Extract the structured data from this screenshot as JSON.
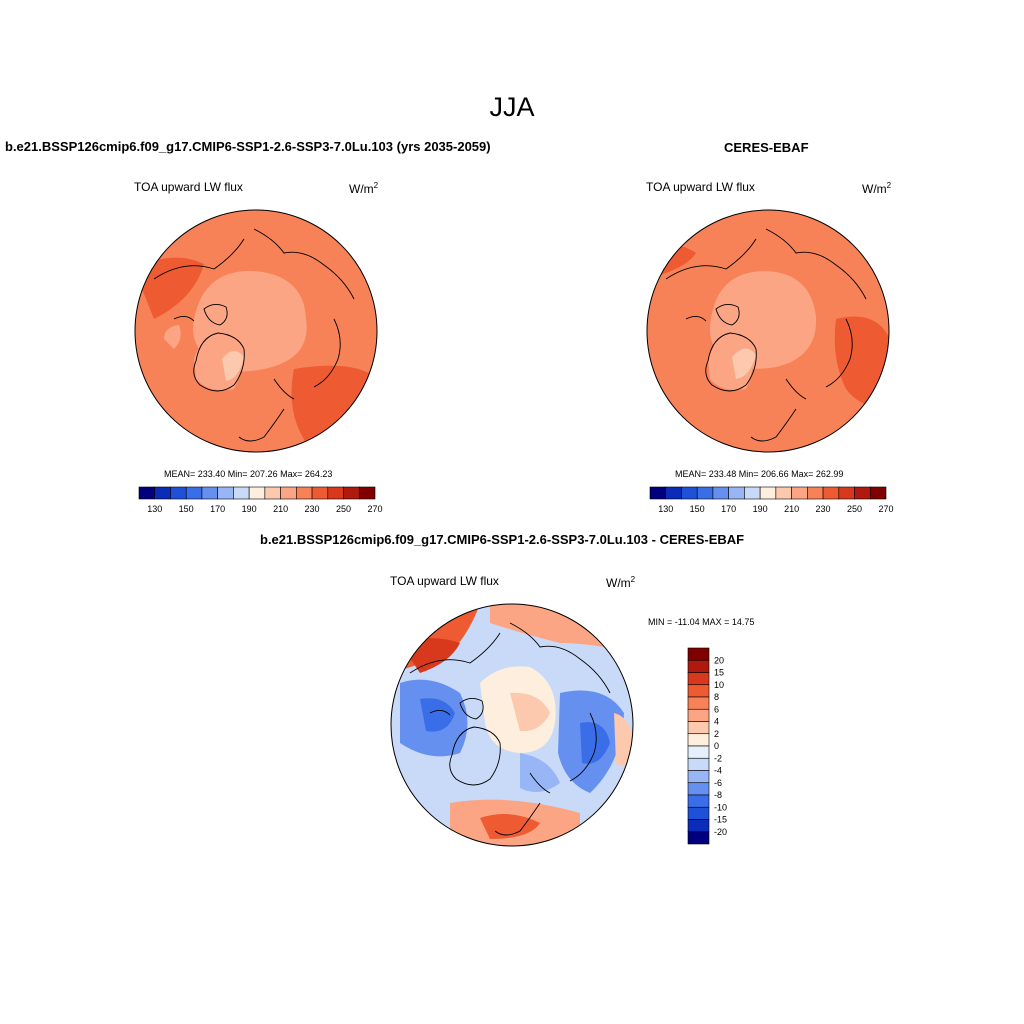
{
  "title": "JJA",
  "colors": {
    "abs_scale": [
      "#00007f",
      "#0a2cb8",
      "#1e50d8",
      "#3a6ee8",
      "#6690f0",
      "#98b6f6",
      "#c8daf8",
      "#fdeede",
      "#fcc8ae",
      "#fba584",
      "#f78258",
      "#ee5a32",
      "#d8381c",
      "#b01a0e",
      "#800000"
    ],
    "diff_scale": [
      "#00007f",
      "#0a2cb8",
      "#1e50d8",
      "#3a6ee8",
      "#6690f0",
      "#98b6f6",
      "#c8daf8",
      "#e6f0fa",
      "#fdeede",
      "#fcc8ae",
      "#fba584",
      "#f78258",
      "#ee5a32",
      "#d8381c",
      "#b01a0e",
      "#800000"
    ]
  },
  "panels": [
    {
      "title": "b.e21.BSSP126cmip6.f09_g17.CMIP6-SSP1-2.6-SSP3-7.0Lu.103 (yrs 2035-2059)",
      "left_label": "TOA upward LW flux",
      "units": "W/m",
      "units_sup": "2",
      "stats": "MEAN= 233.40   Min= 207.26   Max= 264.23",
      "colorbar_ticks": [
        "130",
        "150",
        "170",
        "190",
        "210",
        "230",
        "250",
        "270"
      ]
    },
    {
      "title": "CERES-EBAF",
      "left_label": "TOA upward LW flux",
      "units": "W/m",
      "units_sup": "2",
      "stats": "MEAN= 233.48   Min= 206.66   Max= 262.99",
      "colorbar_ticks": [
        "130",
        "150",
        "170",
        "190",
        "210",
        "230",
        "250",
        "270"
      ]
    },
    {
      "title": "b.e21.BSSP126cmip6.f09_g17.CMIP6-SSP1-2.6-SSP3-7.0Lu.103 - CERES-EBAF",
      "left_label": "TOA upward LW flux",
      "units": "W/m",
      "units_sup": "2",
      "stats": "MIN = -11.04 MAX =  14.75",
      "colorbar_ticks": [
        "20",
        "15",
        "10",
        "8",
        "6",
        "4",
        "2",
        "0",
        "-2",
        "-4",
        "-6",
        "-8",
        "-10",
        "-15",
        "-20"
      ]
    }
  ]
}
